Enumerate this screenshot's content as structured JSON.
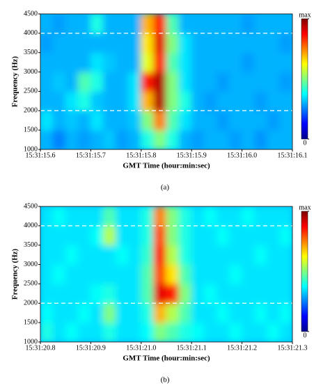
{
  "chart_data": [
    {
      "type": "heatmap",
      "xlabel": "GMT Time (hour:min:sec)",
      "ylabel": "Frequency (Hz)",
      "caption": "(a)",
      "xlim": [
        15.6,
        16.1
      ],
      "xticks": [
        {
          "value": 15.6,
          "label": "15:31:15.6"
        },
        {
          "value": 15.7,
          "label": "15:31:15.7"
        },
        {
          "value": 15.8,
          "label": "15:31:15.8"
        },
        {
          "value": 15.9,
          "label": "15:31:15.9"
        },
        {
          "value": 16.0,
          "label": "15:31:16.0"
        },
        {
          "value": 16.1,
          "label": "15:31:16.1"
        }
      ],
      "ylim": [
        1000,
        4500
      ],
      "yticks": [
        1000,
        1500,
        2000,
        2500,
        3000,
        3500,
        4000,
        4500
      ],
      "hlines": [
        2000,
        4000
      ],
      "zlim": [
        0,
        1
      ],
      "zticks": [
        0,
        {
          "value": 1,
          "label": "max"
        }
      ],
      "z": [
        [
          0.3,
          0.25,
          0.3,
          0.28,
          0.3,
          0.32,
          0.28,
          0.3,
          0.4,
          0.5,
          0.4,
          0.3,
          0.28,
          0.3,
          0.3,
          0.28,
          0.3,
          0.27,
          0.3,
          0.3
        ],
        [
          0.35,
          0.3,
          0.32,
          0.3,
          0.35,
          0.3,
          0.3,
          0.32,
          0.5,
          0.75,
          0.45,
          0.35,
          0.3,
          0.3,
          0.28,
          0.3,
          0.3,
          0.3,
          0.28,
          0.3
        ],
        [
          0.3,
          0.3,
          0.35,
          0.4,
          0.32,
          0.3,
          0.3,
          0.35,
          0.7,
          0.95,
          0.5,
          0.4,
          0.3,
          0.28,
          0.3,
          0.3,
          0.3,
          0.28,
          0.3,
          0.3
        ],
        [
          0.3,
          0.32,
          0.3,
          0.45,
          0.4,
          0.3,
          0.3,
          0.35,
          0.85,
          0.95,
          0.5,
          0.35,
          0.3,
          0.3,
          0.28,
          0.3,
          0.3,
          0.3,
          0.3,
          0.28
        ],
        [
          0.3,
          0.3,
          0.3,
          0.3,
          0.35,
          0.32,
          0.3,
          0.3,
          0.6,
          0.85,
          0.45,
          0.35,
          0.3,
          0.3,
          0.3,
          0.3,
          0.28,
          0.3,
          0.3,
          0.3
        ],
        [
          0.28,
          0.3,
          0.3,
          0.3,
          0.3,
          0.3,
          0.3,
          0.3,
          0.65,
          0.9,
          0.5,
          0.35,
          0.3,
          0.3,
          0.3,
          0.3,
          0.3,
          0.3,
          0.3,
          0.28
        ],
        [
          0.3,
          0.28,
          0.3,
          0.3,
          0.4,
          0.3,
          0.3,
          0.3,
          0.7,
          0.85,
          0.45,
          0.3,
          0.3,
          0.3,
          0.3,
          0.3,
          0.28,
          0.3,
          0.3,
          0.3
        ]
      ]
    },
    {
      "type": "heatmap",
      "xlabel": "GMT Time (hour:min:sec)",
      "ylabel": "Frequency (Hz)",
      "caption": "(b)",
      "xlim": [
        20.8,
        21.3
      ],
      "xticks": [
        {
          "value": 20.8,
          "label": "15:31:20.8"
        },
        {
          "value": 20.9,
          "label": "15:31:20.9"
        },
        {
          "value": 21.0,
          "label": "15:31:21.0"
        },
        {
          "value": 21.1,
          "label": "15:31:21.1"
        },
        {
          "value": 21.2,
          "label": "15:31:21.2"
        },
        {
          "value": 21.3,
          "label": "15:31:21.3"
        }
      ],
      "ylim": [
        1000,
        4500
      ],
      "yticks": [
        1000,
        1500,
        2000,
        2500,
        3000,
        3500,
        4000,
        4500
      ],
      "hlines": [
        2000,
        4000
      ],
      "zlim": [
        0,
        1
      ],
      "zticks": [
        0,
        {
          "value": 1,
          "label": "max"
        }
      ],
      "z": [
        [
          0.4,
          0.35,
          0.38,
          0.35,
          0.35,
          0.4,
          0.35,
          0.35,
          0.38,
          0.5,
          0.45,
          0.4,
          0.38,
          0.35,
          0.35,
          0.38,
          0.35,
          0.35,
          0.38,
          0.35
        ],
        [
          0.38,
          0.35,
          0.35,
          0.38,
          0.35,
          0.5,
          0.35,
          0.35,
          0.4,
          0.7,
          0.55,
          0.45,
          0.35,
          0.35,
          0.38,
          0.35,
          0.35,
          0.38,
          0.35,
          0.38
        ],
        [
          0.35,
          0.35,
          0.35,
          0.35,
          0.38,
          0.4,
          0.35,
          0.35,
          0.45,
          0.9,
          0.85,
          0.5,
          0.35,
          0.38,
          0.35,
          0.35,
          0.35,
          0.35,
          0.35,
          0.35
        ],
        [
          0.35,
          0.38,
          0.35,
          0.35,
          0.35,
          0.35,
          0.35,
          0.35,
          0.45,
          0.8,
          0.65,
          0.45,
          0.35,
          0.35,
          0.35,
          0.38,
          0.35,
          0.35,
          0.35,
          0.35
        ],
        [
          0.35,
          0.35,
          0.38,
          0.35,
          0.35,
          0.35,
          0.38,
          0.35,
          0.42,
          0.85,
          0.55,
          0.4,
          0.35,
          0.35,
          0.35,
          0.35,
          0.35,
          0.38,
          0.35,
          0.35
        ],
        [
          0.35,
          0.35,
          0.35,
          0.35,
          0.38,
          0.55,
          0.35,
          0.35,
          0.4,
          0.8,
          0.5,
          0.4,
          0.35,
          0.35,
          0.38,
          0.35,
          0.35,
          0.35,
          0.35,
          0.38
        ],
        [
          0.35,
          0.38,
          0.35,
          0.35,
          0.35,
          0.45,
          0.35,
          0.35,
          0.4,
          0.75,
          0.5,
          0.4,
          0.35,
          0.38,
          0.35,
          0.35,
          0.38,
          0.35,
          0.35,
          0.35
        ]
      ]
    }
  ]
}
